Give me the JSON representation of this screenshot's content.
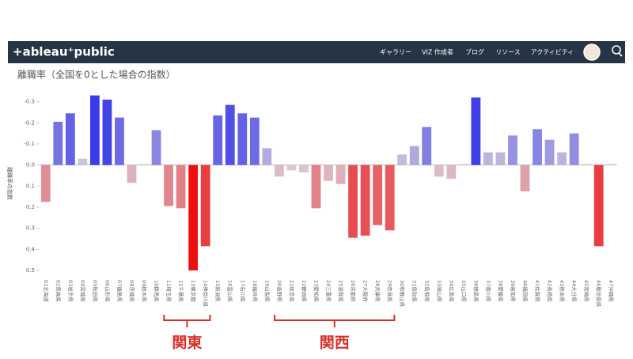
{
  "navbar": {
    "logo": "+ableau⁺public",
    "items": [
      "ギャラリー",
      "VIZ 作成者",
      "ブログ",
      "リソース",
      "アクティビティ"
    ]
  },
  "chart_data": {
    "type": "bar",
    "title": "離職率（全国を0とした場合の指数）",
    "y_label": "離職率の指数",
    "categories": [
      "01北海道",
      "02青森県",
      "03岩手県",
      "04宮城県",
      "05秋田県",
      "06山形県",
      "07福島県",
      "08茨城県",
      "09栃木県",
      "10群馬県",
      "11埼玉県",
      "12千葉県",
      "13東京都",
      "14神奈川県",
      "15新潟県",
      "16富山県",
      "17石川県",
      "18福井県",
      "19山梨県",
      "20長野県",
      "21岐阜県",
      "22静岡県",
      "23愛知県",
      "24三重県",
      "25滋賀県",
      "26京都府",
      "27大阪府",
      "28兵庫県",
      "29奈良県",
      "30和歌山県",
      "31鳥取県",
      "32島根県",
      "33岡山県",
      "34広島県",
      "35山口県",
      "36徳島県",
      "37香川県",
      "38愛媛県",
      "39高知県",
      "40福岡県",
      "41佐賀県",
      "42長崎県",
      "43熊本県",
      "44大分県",
      "45宮崎県",
      "46鹿児島県",
      "47沖縄県"
    ],
    "values": [
      0.175,
      -0.205,
      -0.245,
      -0.03,
      -0.33,
      -0.31,
      -0.225,
      0.085,
      -0.005,
      -0.165,
      0.195,
      0.205,
      0.5,
      0.385,
      -0.235,
      -0.285,
      -0.245,
      -0.225,
      -0.08,
      0.055,
      0.025,
      0.035,
      0.205,
      0.075,
      0.09,
      0.345,
      0.335,
      0.285,
      0.31,
      -0.05,
      -0.09,
      -0.18,
      0.055,
      0.065,
      -0.005,
      -0.32,
      -0.06,
      -0.06,
      -0.14,
      0.125,
      -0.17,
      -0.12,
      -0.06,
      -0.15,
      -0.005,
      0.385,
      -0.005
    ],
    "ylim": [
      -0.34,
      0.53
    ],
    "reversed": true,
    "yticks": [
      -0.3,
      -0.2,
      -0.1,
      {
        "value": 0,
        "label": "0.0"
      },
      0.1,
      0.2,
      0.3,
      0.4,
      0.5
    ],
    "color_scale": {
      "negative": "#3a3ae8",
      "neutral": "#d9d2dc",
      "positive": "#ee1010"
    }
  },
  "annotations": [
    "関東",
    "関西"
  ]
}
